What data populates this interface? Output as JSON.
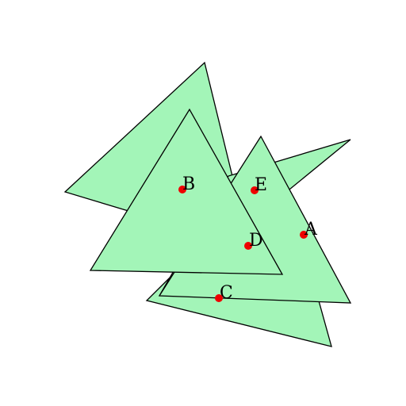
{
  "diagram": {
    "colors": {
      "triangle_fill": "#a3f5b8",
      "triangle_stroke": "#000000",
      "point": "#ee0000",
      "label": "#000000"
    },
    "shapes": [
      {
        "name": "triangle-1",
        "type": "triangle"
      },
      {
        "name": "triangle-2",
        "type": "triangle"
      },
      {
        "name": "triangle-3",
        "type": "triangle"
      },
      {
        "name": "triangle-4",
        "type": "triangle"
      },
      {
        "name": "triangle-5",
        "type": "triangle"
      }
    ],
    "points": [
      {
        "label": "A"
      },
      {
        "label": "B"
      },
      {
        "label": "C"
      },
      {
        "label": "D"
      },
      {
        "label": "E"
      }
    ]
  }
}
